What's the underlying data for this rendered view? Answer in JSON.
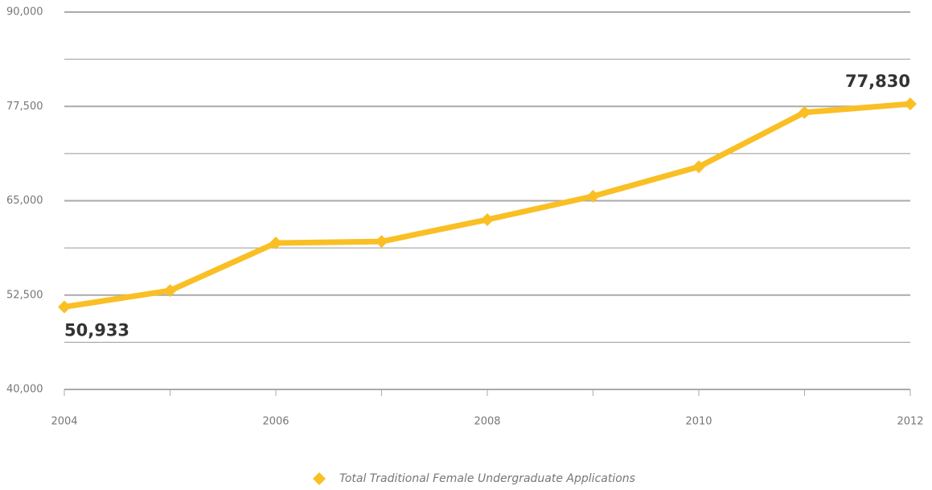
{
  "chart_data": {
    "type": "line",
    "x": [
      2004,
      2005,
      2006,
      2007,
      2008,
      2009,
      2010,
      2011,
      2012
    ],
    "xlim": [
      2004,
      2012
    ],
    "xticks": [
      2004,
      2006,
      2008,
      2010,
      2012
    ],
    "ylim": [
      40000,
      90000
    ],
    "yticks": [
      {
        "value": 40000,
        "label": "40,000"
      },
      {
        "value": 52500,
        "label": "52,500"
      },
      {
        "value": 65000,
        "label": "65,000"
      },
      {
        "value": 77500,
        "label": "77,500"
      },
      {
        "value": 90000,
        "label": "90,000"
      }
    ],
    "minor_yticks": [
      46250,
      58750,
      71250,
      83750
    ],
    "grid": true,
    "legend": "bottom",
    "series": [
      {
        "name": "Total Traditional Female Undergraduate Applications",
        "color": "#f9bf24",
        "values": [
          50933,
          53100,
          59400,
          59600,
          62500,
          65600,
          69500,
          76700,
          77830
        ],
        "value_labels": [
          "50,933",
          null,
          null,
          null,
          null,
          null,
          null,
          null,
          "77,830"
        ]
      }
    ]
  }
}
